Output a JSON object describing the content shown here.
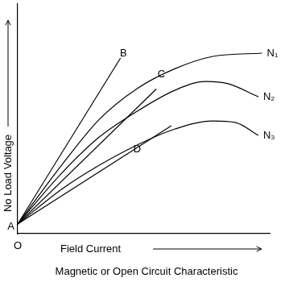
{
  "chart_data": {
    "type": "line",
    "title": "Magnetic or Open Circuit Characteristic",
    "x_label": "Field Current",
    "y_label": "No Load Voltage",
    "xlim": [
      0,
      100
    ],
    "ylim": [
      0,
      100
    ],
    "tick_labels": false,
    "grid": false,
    "series": [
      {
        "name": "N₁",
        "color": "#000000",
        "x": [
          0,
          17.4,
          32.4,
          47.4,
          62.5,
          77.5,
          97
        ],
        "values": [
          4.2,
          29.8,
          49.8,
          63.2,
          71.9,
          77.2,
          78.6
        ]
      },
      {
        "name": "N₂",
        "color": "#000000",
        "x": [
          0,
          17.4,
          32.4,
          47.4,
          62.5,
          74.5,
          83.5,
          95.5
        ],
        "values": [
          4.2,
          26.3,
          42.1,
          53.3,
          62.5,
          66.3,
          65.3,
          59.6
        ]
      },
      {
        "name": "N₃",
        "color": "#000000",
        "x": [
          0,
          17.4,
          32.4,
          47.4,
          62.5,
          77.5,
          86.5,
          95.5
        ],
        "values": [
          4.2,
          19.3,
          29.8,
          38.6,
          45.6,
          49.1,
          48.4,
          42.8
        ]
      },
      {
        "color": "#000000",
        "x": [
          0,
          40.8
        ],
        "values": [
          4.2,
          76.5
        ]
      },
      {
        "color": "#000000",
        "x": [
          0,
          55
        ],
        "values": [
          4.2,
          63
        ]
      },
      {
        "color": "#000000",
        "x": [
          0,
          61
        ],
        "values": [
          4.2,
          47
        ]
      }
    ],
    "annotations": [
      {
        "text": "O",
        "x": 0,
        "y": 0
      },
      {
        "text": "A",
        "x": 0,
        "y": 4.2
      },
      {
        "text": "B",
        "x": 42,
        "y": 78.6
      },
      {
        "text": "C",
        "x": 57,
        "y": 69.5
      },
      {
        "text": "D",
        "x": 47.4,
        "y": 36.8
      }
    ]
  }
}
